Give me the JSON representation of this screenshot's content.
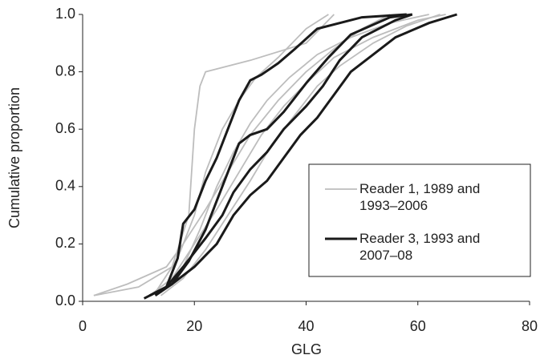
{
  "chart_data": {
    "type": "line",
    "xlabel": "GLG",
    "ylabel": "Cumulative proportion",
    "xlim": [
      0,
      80
    ],
    "ylim": [
      0,
      1
    ],
    "xticks": [
      0,
      20,
      40,
      60,
      80
    ],
    "yticks": [
      {
        "value": 0,
        "label": "0.0"
      },
      0.2,
      0.4,
      0.6,
      0.8,
      {
        "value": 1,
        "label": "1.0"
      }
    ],
    "legend": "right",
    "series": [
      {
        "name": "Reader 1, 1989 and 1993–2006",
        "color": "#bdbdbd",
        "lines": [
          {
            "x": [
              2,
              10,
              16,
              19,
              20,
              21,
              22,
              30,
              40,
              45
            ],
            "values": [
              0.02,
              0.05,
              0.12,
              0.3,
              0.6,
              0.75,
              0.8,
              0.84,
              0.9,
              1.0
            ]
          },
          {
            "x": [
              2,
              8,
              15,
              18,
              22,
              26,
              30,
              35,
              40,
              45,
              50,
              55
            ],
            "values": [
              0.02,
              0.06,
              0.12,
              0.2,
              0.32,
              0.45,
              0.58,
              0.7,
              0.8,
              0.88,
              0.95,
              1.0
            ]
          },
          {
            "x": [
              12,
              16,
              20,
              24,
              28,
              32,
              36,
              40,
              45,
              52,
              60,
              65
            ],
            "values": [
              0.02,
              0.08,
              0.2,
              0.32,
              0.45,
              0.58,
              0.68,
              0.76,
              0.85,
              0.92,
              0.98,
              1.0
            ]
          },
          {
            "x": [
              13,
              17,
              20,
              22,
              25,
              28,
              31,
              35,
              40,
              44
            ],
            "values": [
              0.03,
              0.15,
              0.3,
              0.45,
              0.6,
              0.7,
              0.78,
              0.85,
              0.95,
              1.0
            ]
          },
          {
            "x": [
              14,
              18,
              22,
              26,
              30,
              34,
              38,
              42,
              46,
              52,
              58,
              64
            ],
            "values": [
              0.02,
              0.08,
              0.18,
              0.3,
              0.42,
              0.55,
              0.65,
              0.75,
              0.82,
              0.9,
              0.96,
              1.0
            ]
          },
          {
            "x": [
              14,
              18,
              21,
              24,
              27,
              30,
              33,
              37,
              42,
              48,
              55,
              62
            ],
            "values": [
              0.03,
              0.12,
              0.25,
              0.4,
              0.52,
              0.62,
              0.7,
              0.78,
              0.86,
              0.92,
              0.97,
              1.0
            ]
          }
        ]
      },
      {
        "name": "Reader 3, 1993 and 2007–08",
        "color": "#1a1a1a",
        "lines": [
          {
            "x": [
              12,
              15,
              17,
              18,
              20,
              22,
              24,
              26,
              28,
              30,
              32,
              35,
              38,
              42,
              50,
              58
            ],
            "values": [
              0.02,
              0.05,
              0.15,
              0.27,
              0.32,
              0.42,
              0.5,
              0.6,
              0.7,
              0.77,
              0.79,
              0.83,
              0.88,
              0.95,
              0.99,
              1.0
            ]
          },
          {
            "x": [
              13,
              16,
              19,
              22,
              24,
              26,
              28,
              30,
              33,
              36,
              40,
              44,
              48,
              55,
              59
            ],
            "values": [
              0.02,
              0.06,
              0.14,
              0.25,
              0.35,
              0.45,
              0.55,
              0.58,
              0.6,
              0.66,
              0.76,
              0.85,
              0.93,
              0.99,
              1.0
            ]
          },
          {
            "x": [
              11,
              15,
              18,
              22,
              25,
              27,
              30,
              33,
              36,
              40,
              43,
              46,
              50,
              56,
              59
            ],
            "values": [
              0.01,
              0.05,
              0.12,
              0.22,
              0.3,
              0.38,
              0.46,
              0.52,
              0.6,
              0.68,
              0.75,
              0.84,
              0.92,
              0.98,
              1.0
            ]
          },
          {
            "x": [
              12,
              16,
              20,
              24,
              27,
              30,
              33,
              36,
              39,
              42,
              45,
              48,
              52,
              56,
              62,
              67
            ],
            "values": [
              0.02,
              0.06,
              0.12,
              0.2,
              0.3,
              0.37,
              0.42,
              0.5,
              0.58,
              0.64,
              0.72,
              0.8,
              0.86,
              0.92,
              0.97,
              1.0
            ]
          }
        ]
      }
    ]
  }
}
